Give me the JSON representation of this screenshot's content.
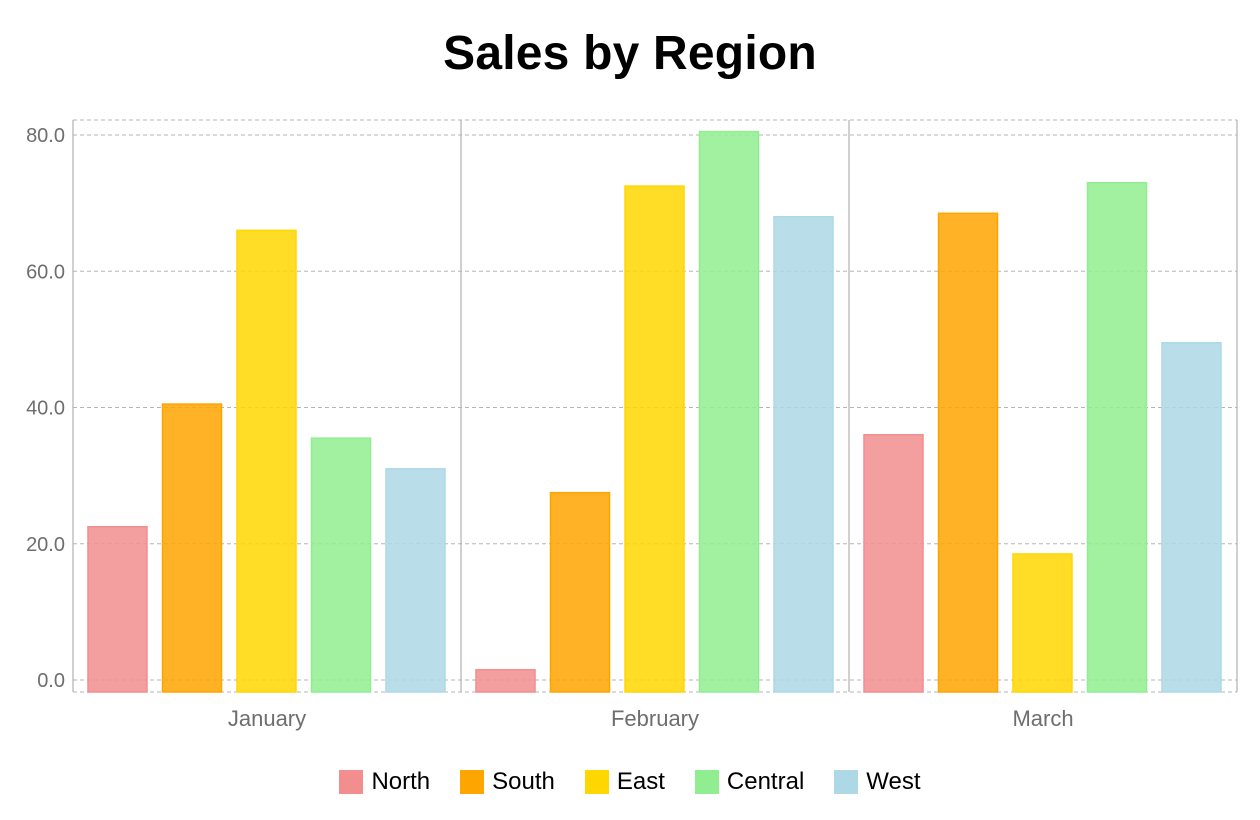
{
  "chart_data": {
    "type": "bar",
    "title": "Sales by Region",
    "categories": [
      "January",
      "February",
      "March"
    ],
    "series": [
      {
        "name": "North",
        "color": "#f28e8e",
        "values": [
          22.5,
          1.5,
          36.0
        ]
      },
      {
        "name": "South",
        "color": "#ffa500",
        "values": [
          40.5,
          27.5,
          68.5
        ]
      },
      {
        "name": "East",
        "color": "#ffd700",
        "values": [
          66.0,
          72.5,
          18.5
        ]
      },
      {
        "name": "Central",
        "color": "#90ee90",
        "values": [
          35.5,
          80.5,
          73.0
        ]
      },
      {
        "name": "West",
        "color": "#add8e6",
        "values": [
          31.0,
          68.0,
          49.5
        ]
      }
    ],
    "yticks": [
      "0.0",
      "20.0",
      "40.0",
      "60.0",
      "80.0"
    ],
    "ylim": [
      0,
      80
    ],
    "xlabel": "",
    "ylabel": "",
    "grid": true,
    "legend_position": "bottom"
  }
}
